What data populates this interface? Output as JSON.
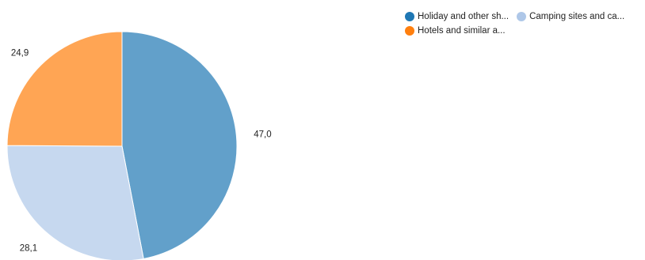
{
  "chart_data": {
    "type": "pie",
    "slices": [
      {
        "label": "Holiday and other sh...",
        "value": 47.0,
        "display": "47,0",
        "color": "#62a0ca",
        "legend_color": "#1f77b4"
      },
      {
        "label": "Camping sites and ca...",
        "value": 28.1,
        "display": "28,1",
        "color": "#c6d8ef",
        "legend_color": "#aec7e8"
      },
      {
        "label": "Hotels and similar a...",
        "value": 24.9,
        "display": "24,9",
        "color": "#ffa554",
        "legend_color": "#ff7f0e"
      }
    ],
    "start": "top",
    "direction": "clockwise",
    "legend_position": "top-right"
  }
}
